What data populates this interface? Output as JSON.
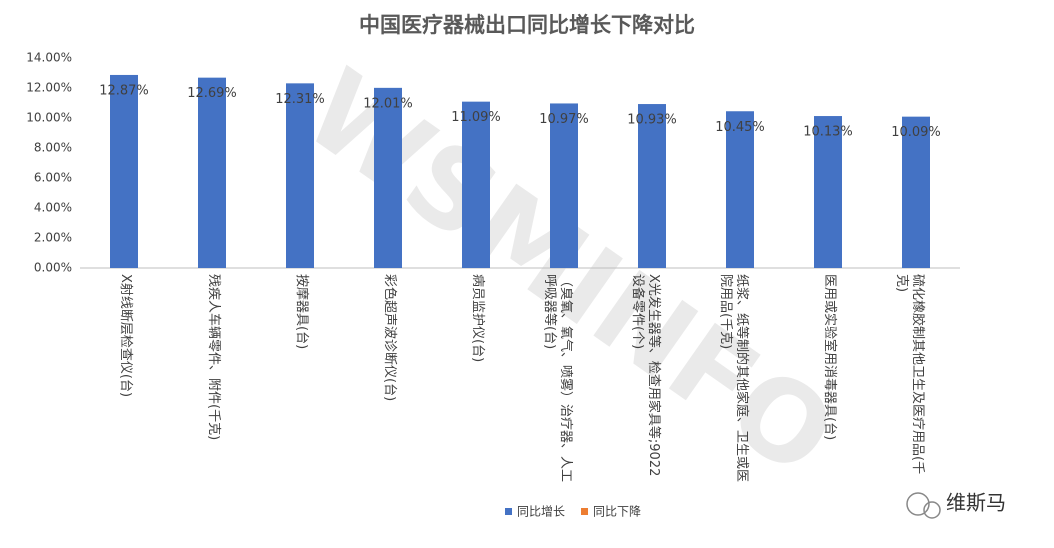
{
  "chart_data": {
    "type": "bar",
    "title": "中国医疗器械出口同比增长下降对比",
    "categories": [
      "X射线断层检查仪(台)",
      "残疾人车辆零件、附件(千克)",
      "按摩器具(台)",
      "彩色超声波诊断仪(台)",
      "病员监护仪(台)",
      "（臭氧、氧气、喷雾）治疗器、人工呼吸器等(台)",
      "X光发生器等、检查用家具等;9022设备零件(个)",
      "纸浆、纸等制的其他家庭、卫生或医院用品(千克)",
      "医用或实验室用消毒器具(台)",
      "硫化橡胶制其他卫生及医疗用品(千克)"
    ],
    "series": [
      {
        "name": "同比增长",
        "color": "#4472c4",
        "values": [
          12.87,
          12.69,
          12.31,
          12.01,
          11.09,
          10.97,
          10.93,
          10.45,
          10.13,
          10.09
        ],
        "value_labels": [
          "12.87%",
          "12.69%",
          "12.31%",
          "12.01%",
          "11.09%",
          "10.97%",
          "10.93%",
          "10.45%",
          "10.13%",
          "10.09%"
        ]
      },
      {
        "name": "同比下降",
        "color": "#ed7d31",
        "values": [
          null,
          null,
          null,
          null,
          null,
          null,
          null,
          null,
          null,
          null
        ]
      }
    ],
    "ylim": [
      0,
      14
    ],
    "yticks": [
      {
        "value": 0,
        "label": "0.00%"
      },
      {
        "value": 2,
        "label": "2.00%"
      },
      {
        "value": 4,
        "label": "4.00%"
      },
      {
        "value": 6,
        "label": "6.00%"
      },
      {
        "value": 8,
        "label": "8.00%"
      },
      {
        "value": 10,
        "label": "10.00%"
      },
      {
        "value": 12,
        "label": "12.00%"
      },
      {
        "value": 14,
        "label": "14.00%"
      }
    ],
    "grid": false,
    "legend": "bottom"
  },
  "watermark": "WSMINFO",
  "brand": "维斯马"
}
